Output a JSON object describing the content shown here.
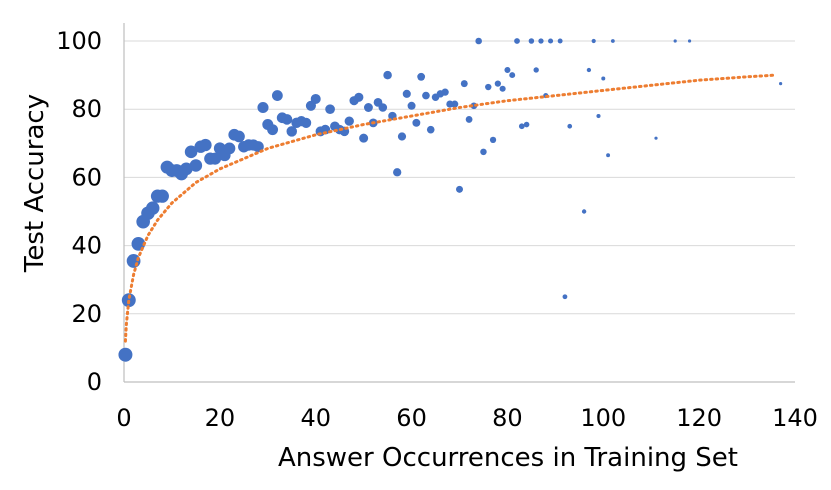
{
  "chart_data": {
    "type": "scatter",
    "title": "",
    "xlabel": "Answer Occurrences in Training Set",
    "ylabel": "Test Accuracy",
    "xlim": [
      0,
      140
    ],
    "ylim": [
      0,
      100
    ],
    "xticks": [
      0,
      20,
      40,
      60,
      80,
      100,
      120,
      140
    ],
    "yticks": [
      0,
      20,
      40,
      60,
      80,
      100
    ],
    "grid": "horizontal",
    "legend": "none",
    "colors": {
      "points": "#4472c4",
      "trendline": "#ed7d31",
      "grid": "#d9d9d9",
      "axis": "#bfbfbf"
    },
    "series": [
      {
        "marker_size": "decreases with x",
        "points": [
          [
            0.3,
            8
          ],
          [
            1,
            24
          ],
          [
            2,
            35.5
          ],
          [
            3,
            40.5
          ],
          [
            4,
            47
          ],
          [
            5,
            49.5
          ],
          [
            6,
            51
          ],
          [
            7,
            54.5
          ],
          [
            8,
            54.5
          ],
          [
            9,
            63
          ],
          [
            10,
            62
          ],
          [
            11,
            62
          ],
          [
            12,
            61
          ],
          [
            13,
            62.5
          ],
          [
            14,
            67.5
          ],
          [
            15,
            63.5
          ],
          [
            16,
            69
          ],
          [
            17,
            69.5
          ],
          [
            18,
            65.5
          ],
          [
            19,
            65.5
          ],
          [
            20,
            68.5
          ],
          [
            21,
            66.5
          ],
          [
            22,
            68.5
          ],
          [
            23,
            72.5
          ],
          [
            24,
            72
          ],
          [
            25,
            69
          ],
          [
            26,
            69.5
          ],
          [
            27,
            69.5
          ],
          [
            28,
            69
          ],
          [
            29,
            80.5
          ],
          [
            30,
            75.5
          ],
          [
            31,
            74
          ],
          [
            32,
            84
          ],
          [
            33,
            77.5
          ],
          [
            34,
            77
          ],
          [
            35,
            73.5
          ],
          [
            36,
            76
          ],
          [
            37,
            76.5
          ],
          [
            38,
            76
          ],
          [
            39,
            81
          ],
          [
            40,
            83
          ],
          [
            41,
            73.5
          ],
          [
            42,
            74
          ],
          [
            43,
            80
          ],
          [
            44,
            75
          ],
          [
            45,
            74
          ],
          [
            46,
            73.5
          ],
          [
            47,
            76.5
          ],
          [
            48,
            82.5
          ],
          [
            49,
            83.5
          ],
          [
            50,
            71.5
          ],
          [
            51,
            80.5
          ],
          [
            52,
            76
          ],
          [
            53,
            82
          ],
          [
            54,
            80.5
          ],
          [
            55,
            90
          ],
          [
            56,
            78
          ],
          [
            57,
            61.5
          ],
          [
            58,
            72
          ],
          [
            59,
            84.5
          ],
          [
            60,
            81
          ],
          [
            61,
            76
          ],
          [
            62,
            89.5
          ],
          [
            63,
            84
          ],
          [
            64,
            74
          ],
          [
            65,
            83.5
          ],
          [
            66,
            84.5
          ],
          [
            67,
            85
          ],
          [
            68,
            81.5
          ],
          [
            69,
            81.5
          ],
          [
            70,
            56.5
          ],
          [
            71,
            87.5
          ],
          [
            72,
            77
          ],
          [
            73,
            81
          ],
          [
            74,
            100
          ],
          [
            75,
            67.5
          ],
          [
            76,
            86.5
          ],
          [
            77,
            71
          ],
          [
            78,
            87.5
          ],
          [
            79,
            86
          ],
          [
            80,
            91.5
          ],
          [
            81,
            90
          ],
          [
            82,
            100
          ],
          [
            83,
            75
          ],
          [
            84,
            75.5
          ],
          [
            85,
            100
          ],
          [
            86,
            91.5
          ],
          [
            87,
            100
          ],
          [
            88,
            84
          ],
          [
            89,
            100
          ],
          [
            91,
            100
          ],
          [
            92,
            25
          ],
          [
            93,
            75
          ],
          [
            96,
            50
          ],
          [
            97,
            91.5
          ],
          [
            98,
            100
          ],
          [
            99,
            78
          ],
          [
            100,
            89
          ],
          [
            101,
            66.5
          ],
          [
            102,
            100
          ],
          [
            111,
            71.5
          ],
          [
            115,
            100
          ],
          [
            118,
            100
          ],
          [
            137,
            87.5
          ]
        ]
      }
    ],
    "trendline": {
      "type": "logarithmic",
      "style": "dotted",
      "points": [
        [
          0.3,
          12
        ],
        [
          0.5,
          17
        ],
        [
          1,
          24
        ],
        [
          2,
          31.5
        ],
        [
          3,
          36.5
        ],
        [
          5,
          43
        ],
        [
          7,
          47.5
        ],
        [
          10,
          52.5
        ],
        [
          15,
          58.5
        ],
        [
          20,
          62.5
        ],
        [
          30,
          68.5
        ],
        [
          40,
          72.5
        ],
        [
          50,
          75.5
        ],
        [
          60,
          78
        ],
        [
          70,
          80.5
        ],
        [
          80,
          82.5
        ],
        [
          90,
          84
        ],
        [
          100,
          85.5
        ],
        [
          110,
          87
        ],
        [
          120,
          88.5
        ],
        [
          130,
          89.5
        ],
        [
          136,
          90
        ]
      ]
    }
  }
}
